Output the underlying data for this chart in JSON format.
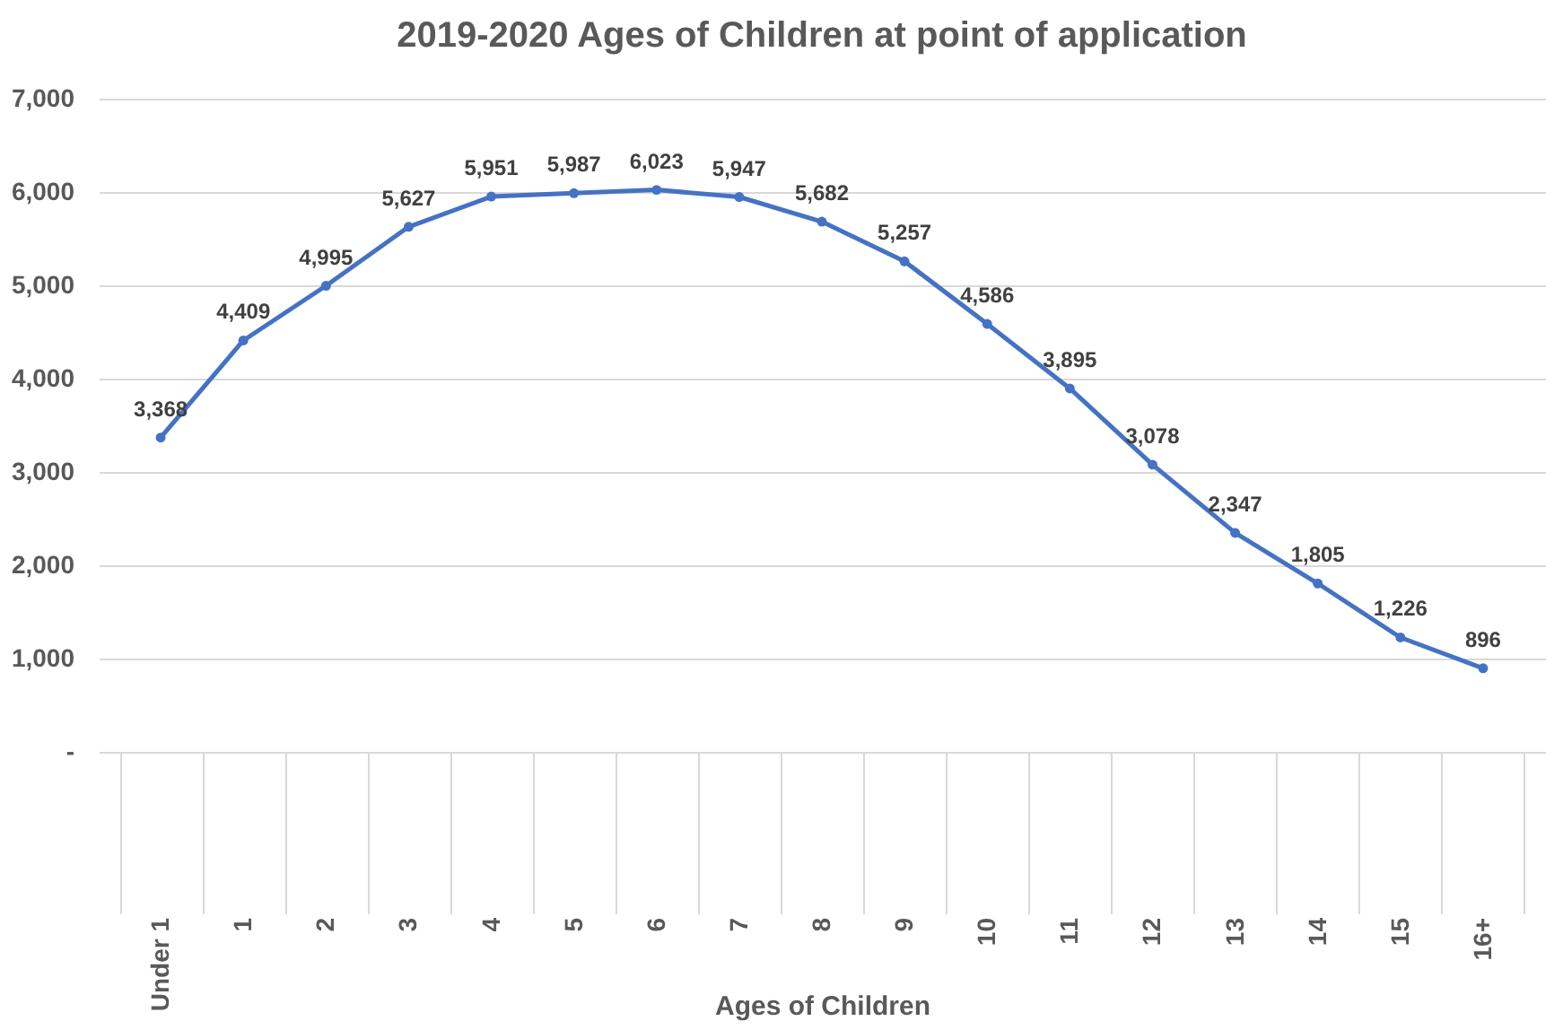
{
  "chart_data": {
    "type": "line",
    "title": "2019-2020 Ages of Children at point of application",
    "xlabel": "Ages of Children",
    "categories": [
      "Under 1",
      "1",
      "2",
      "3",
      "4",
      "5",
      "6",
      "7",
      "8",
      "9",
      "10",
      "11",
      "12",
      "13",
      "14",
      "15",
      "16+"
    ],
    "series": [
      {
        "color": "#4472c4",
        "values": [
          3368,
          4409,
          4995,
          5627,
          5951,
          5987,
          6023,
          5947,
          5682,
          5257,
          4586,
          3895,
          3078,
          2347,
          1805,
          1226,
          896
        ],
        "value_labels": [
          "3,368",
          "4,409",
          "4,995",
          "5,627",
          "5,951",
          "5,987",
          "6,023",
          "5,947",
          "5,682",
          "5,257",
          "4,586",
          "3,895",
          "3,078",
          "2,347",
          "1,805",
          "1,226",
          "896"
        ]
      }
    ],
    "ylim": [
      0,
      7000
    ],
    "yticks": [
      {
        "value": 0,
        "label": "-"
      },
      {
        "value": 1000,
        "label": "1,000"
      },
      {
        "value": 2000,
        "label": "2,000"
      },
      {
        "value": 3000,
        "label": "3,000"
      },
      {
        "value": 4000,
        "label": "4,000"
      },
      {
        "value": 5000,
        "label": "5,000"
      },
      {
        "value": 6000,
        "label": "6,000"
      },
      {
        "value": 7000,
        "label": "7,000"
      }
    ],
    "grid": "y",
    "marker": "circle",
    "line_style": "solid",
    "legend": false
  }
}
